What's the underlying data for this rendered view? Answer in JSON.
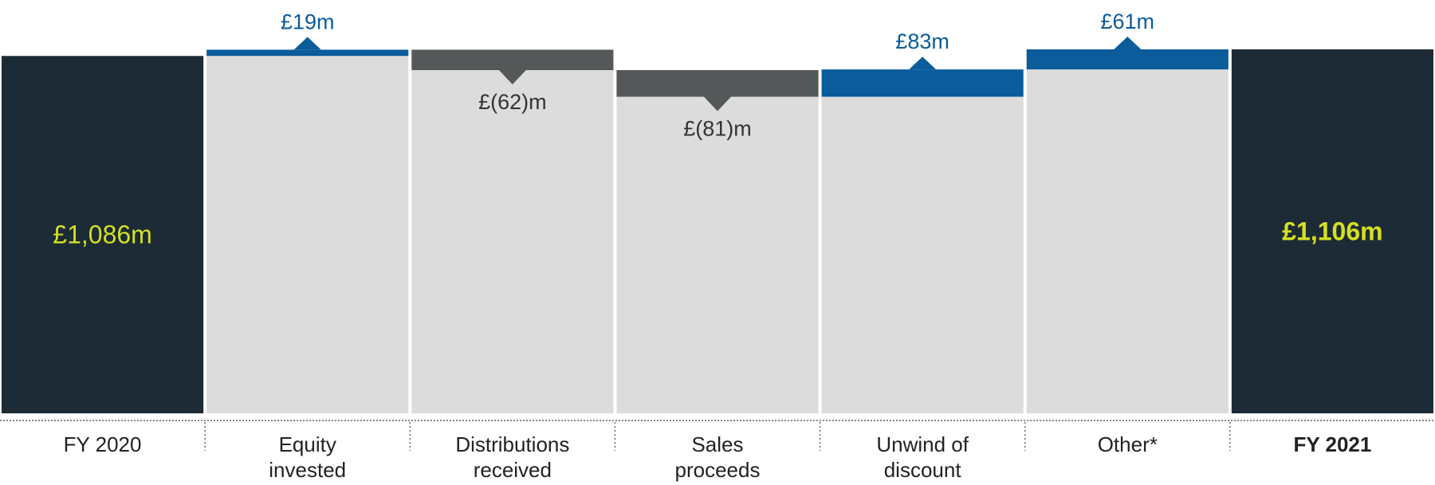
{
  "chart_data": {
    "type": "waterfall",
    "categories": [
      "FY 2020",
      "Equity invested",
      "Distributions received",
      "Sales proceeds",
      "Unwind of discount",
      "Other*",
      "FY 2021"
    ],
    "values": [
      1086,
      19,
      -62,
      -81,
      83,
      61,
      1106
    ],
    "value_labels": [
      "£1,086m",
      "£19m",
      "£(62)m",
      "£(81)m",
      "£83m",
      "£61m",
      "£1,106m"
    ],
    "kinds": [
      "total",
      "delta",
      "delta",
      "delta",
      "delta",
      "delta",
      "total"
    ],
    "colors": {
      "total": "#1c2b36",
      "increase": "#0a5c9b",
      "decrease": "#555859",
      "background": "#dcdcdc",
      "total_label": "#d4e021"
    }
  }
}
